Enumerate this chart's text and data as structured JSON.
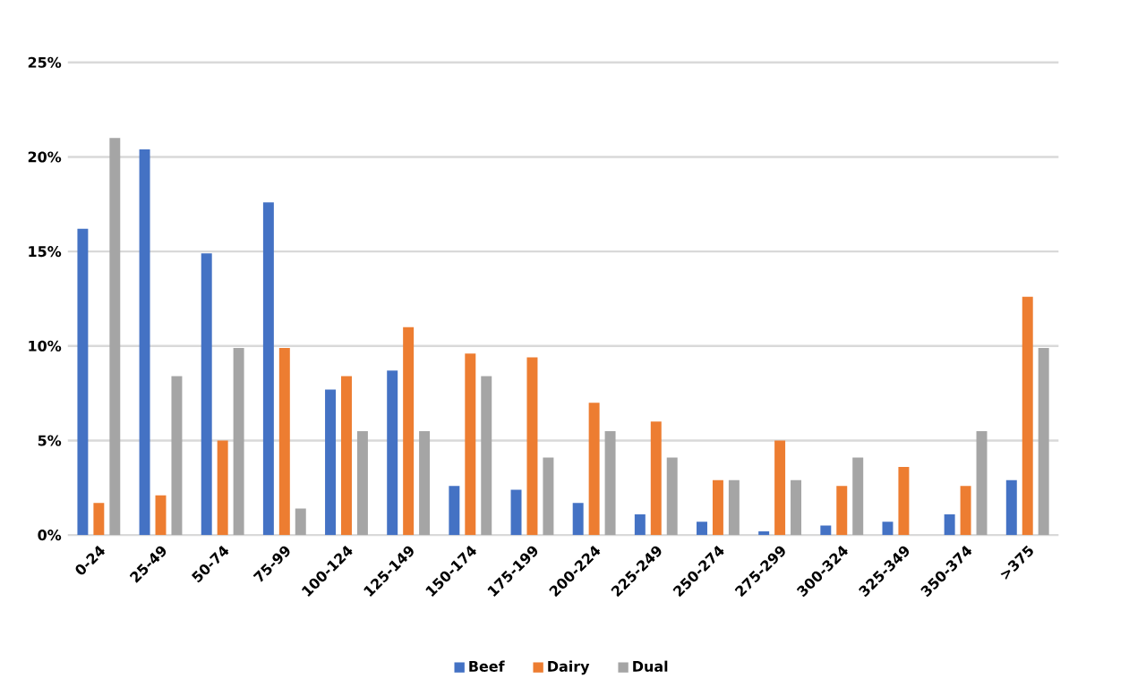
{
  "chart_data": {
    "type": "bar",
    "categories": [
      "0-24",
      "25-49",
      "50-74",
      "75-99",
      "100-124",
      "125-149",
      "150-174",
      "175-199",
      "200-224",
      "225-249",
      "250-274",
      "275-299",
      "300-324",
      "325-349",
      "350-374",
      ">375"
    ],
    "series": [
      {
        "name": "Beef",
        "color": "#4472c4",
        "values": [
          16.2,
          20.4,
          14.9,
          17.6,
          7.7,
          8.7,
          2.6,
          2.4,
          1.7,
          1.1,
          0.7,
          0.2,
          0.5,
          0.7,
          1.1,
          2.9
        ]
      },
      {
        "name": "Dairy",
        "color": "#ed7d31",
        "values": [
          1.7,
          2.1,
          5.0,
          9.9,
          8.4,
          11.0,
          9.6,
          9.4,
          7.0,
          6.0,
          2.9,
          5.0,
          2.6,
          3.6,
          2.6,
          12.6
        ]
      },
      {
        "name": "Dual",
        "color": "#a5a5a5",
        "values": [
          21.0,
          8.4,
          9.9,
          1.4,
          5.5,
          5.5,
          8.4,
          4.1,
          5.5,
          4.1,
          2.9,
          2.9,
          4.1,
          0,
          5.5,
          9.9
        ]
      }
    ],
    "ylim": [
      0,
      25
    ],
    "yticks": [
      {
        "value": 0,
        "label": "0%"
      },
      {
        "value": 5,
        "label": "5%"
      },
      {
        "value": 10,
        "label": "10%"
      },
      {
        "value": 15,
        "label": "15%"
      },
      {
        "value": 20,
        "label": "20%"
      },
      {
        "value": 25,
        "label": "25%"
      }
    ],
    "grid": "y",
    "legend": "bottom"
  }
}
